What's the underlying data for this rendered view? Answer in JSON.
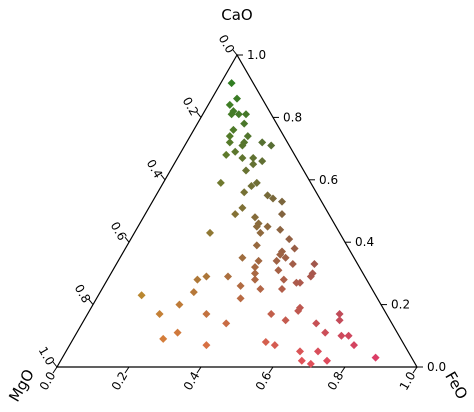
{
  "chart_data": {
    "type": "scatter",
    "subtype": "ternary",
    "axes": {
      "top": {
        "label": "CaO",
        "ticks": [
          1.0,
          0.8,
          0.6,
          0.4,
          0.2,
          0.0
        ],
        "tick_labels": [
          "1.0",
          "0.8",
          "0.6",
          "0.4",
          "0.2",
          "0.0"
        ]
      },
      "left": {
        "label": "MgO",
        "ticks": [
          0.0,
          0.2,
          0.4,
          0.6,
          0.8,
          1.0
        ],
        "tick_labels": [
          "0.0",
          "0.2",
          "0.4",
          "0.6",
          "0.8",
          "1.0"
        ]
      },
      "right": {
        "label": "FeO",
        "ticks": [
          0.0,
          0.2,
          0.4,
          0.6,
          0.8,
          1.0
        ],
        "tick_labels": [
          "0.0",
          "0.2",
          "0.4",
          "0.6",
          "0.8",
          "1.0"
        ]
      }
    },
    "marker": "diamond",
    "color_mapping": {
      "CaO": "#1f7f1f",
      "MgO": "#e89a2a",
      "FeO": "#e0306f"
    },
    "points": [
      {
        "CaO": 0.91,
        "MgO": 0.06,
        "FeO": 0.03
      },
      {
        "CaO": 0.86,
        "MgO": 0.07,
        "FeO": 0.07
      },
      {
        "CaO": 0.84,
        "MgO": 0.1,
        "FeO": 0.06
      },
      {
        "CaO": 0.82,
        "MgO": 0.1,
        "FeO": 0.08
      },
      {
        "CaO": 0.81,
        "MgO": 0.07,
        "FeO": 0.12
      },
      {
        "CaO": 0.81,
        "MgO": 0.11,
        "FeO": 0.08
      },
      {
        "CaO": 0.81,
        "MgO": 0.09,
        "FeO": 0.1
      },
      {
        "CaO": 0.78,
        "MgO": 0.09,
        "FeO": 0.13
      },
      {
        "CaO": 0.76,
        "MgO": 0.13,
        "FeO": 0.11
      },
      {
        "CaO": 0.74,
        "MgO": 0.15,
        "FeO": 0.11
      },
      {
        "CaO": 0.74,
        "MgO": 0.1,
        "FeO": 0.16
      },
      {
        "CaO": 0.72,
        "MgO": 0.12,
        "FeO": 0.16
      },
      {
        "CaO": 0.72,
        "MgO": 0.16,
        "FeO": 0.12
      },
      {
        "CaO": 0.71,
        "MgO": 0.13,
        "FeO": 0.16
      },
      {
        "CaO": 0.69,
        "MgO": 0.16,
        "FeO": 0.15
      },
      {
        "CaO": 0.72,
        "MgO": 0.07,
        "FeO": 0.21
      },
      {
        "CaO": 0.71,
        "MgO": 0.05,
        "FeO": 0.24
      },
      {
        "CaO": 0.68,
        "MgO": 0.19,
        "FeO": 0.13
      },
      {
        "CaO": 0.67,
        "MgO": 0.12,
        "FeO": 0.21
      },
      {
        "CaO": 0.67,
        "MgO": 0.15,
        "FeO": 0.18
      },
      {
        "CaO": 0.66,
        "MgO": 0.1,
        "FeO": 0.24
      },
      {
        "CaO": 0.65,
        "MgO": 0.13,
        "FeO": 0.22
      },
      {
        "CaO": 0.63,
        "MgO": 0.16,
        "FeO": 0.21
      },
      {
        "CaO": 0.59,
        "MgO": 0.25,
        "FeO": 0.16
      },
      {
        "CaO": 0.59,
        "MgO": 0.15,
        "FeO": 0.26
      },
      {
        "CaO": 0.58,
        "MgO": 0.17,
        "FeO": 0.25
      },
      {
        "CaO": 0.56,
        "MgO": 0.2,
        "FeO": 0.24
      },
      {
        "CaO": 0.55,
        "MgO": 0.14,
        "FeO": 0.31
      },
      {
        "CaO": 0.54,
        "MgO": 0.13,
        "FeO": 0.33
      },
      {
        "CaO": 0.53,
        "MgO": 0.11,
        "FeO": 0.36
      },
      {
        "CaO": 0.51,
        "MgO": 0.23,
        "FeO": 0.26
      },
      {
        "CaO": 0.49,
        "MgO": 0.26,
        "FeO": 0.25
      },
      {
        "CaO": 0.49,
        "MgO": 0.13,
        "FeO": 0.38
      },
      {
        "CaO": 0.48,
        "MgO": 0.21,
        "FeO": 0.31
      },
      {
        "CaO": 0.46,
        "MgO": 0.21,
        "FeO": 0.33
      },
      {
        "CaO": 0.45,
        "MgO": 0.22,
        "FeO": 0.33
      },
      {
        "CaO": 0.45,
        "MgO": 0.19,
        "FeO": 0.36
      },
      {
        "CaO": 0.44,
        "MgO": 0.16,
        "FeO": 0.4
      },
      {
        "CaO": 0.43,
        "MgO": 0.36,
        "FeO": 0.21
      },
      {
        "CaO": 0.43,
        "MgO": 0.22,
        "FeO": 0.35
      },
      {
        "CaO": 0.41,
        "MgO": 0.15,
        "FeO": 0.44
      },
      {
        "CaO": 0.39,
        "MgO": 0.25,
        "FeO": 0.36
      },
      {
        "CaO": 0.38,
        "MgO": 0.15,
        "FeO": 0.47
      },
      {
        "CaO": 0.37,
        "MgO": 0.19,
        "FeO": 0.44
      },
      {
        "CaO": 0.36,
        "MgO": 0.2,
        "FeO": 0.44
      },
      {
        "CaO": 0.35,
        "MgO": 0.31,
        "FeO": 0.34
      },
      {
        "CaO": 0.35,
        "MgO": 0.19,
        "FeO": 0.46
      },
      {
        "CaO": 0.34,
        "MgO": 0.22,
        "FeO": 0.44
      },
      {
        "CaO": 0.34,
        "MgO": 0.27,
        "FeO": 0.39
      },
      {
        "CaO": 0.33,
        "MgO": 0.12,
        "FeO": 0.55
      },
      {
        "CaO": 0.33,
        "MgO": 0.18,
        "FeO": 0.49
      },
      {
        "CaO": 0.32,
        "MgO": 0.29,
        "FeO": 0.39
      },
      {
        "CaO": 0.31,
        "MgO": 0.23,
        "FeO": 0.46
      },
      {
        "CaO": 0.3,
        "MgO": 0.3,
        "FeO": 0.4
      },
      {
        "CaO": 0.3,
        "MgO": 0.14,
        "FeO": 0.56
      },
      {
        "CaO": 0.29,
        "MgO": 0.44,
        "FeO": 0.27
      },
      {
        "CaO": 0.29,
        "MgO": 0.38,
        "FeO": 0.33
      },
      {
        "CaO": 0.29,
        "MgO": 0.15,
        "FeO": 0.56
      },
      {
        "CaO": 0.28,
        "MgO": 0.47,
        "FeO": 0.25
      },
      {
        "CaO": 0.28,
        "MgO": 0.31,
        "FeO": 0.41
      },
      {
        "CaO": 0.28,
        "MgO": 0.23,
        "FeO": 0.49
      },
      {
        "CaO": 0.27,
        "MgO": 0.2,
        "FeO": 0.53
      },
      {
        "CaO": 0.27,
        "MgO": 0.19,
        "FeO": 0.54
      },
      {
        "CaO": 0.26,
        "MgO": 0.36,
        "FeO": 0.38
      },
      {
        "CaO": 0.25,
        "MgO": 0.31,
        "FeO": 0.44
      },
      {
        "CaO": 0.25,
        "MgO": 0.25,
        "FeO": 0.5
      },
      {
        "CaO": 0.24,
        "MgO": 0.5,
        "FeO": 0.26
      },
      {
        "CaO": 0.23,
        "MgO": 0.65,
        "FeO": 0.12
      },
      {
        "CaO": 0.22,
        "MgO": 0.38,
        "FeO": 0.4
      },
      {
        "CaO": 0.2,
        "MgO": 0.56,
        "FeO": 0.24
      },
      {
        "CaO": 0.19,
        "MgO": 0.23,
        "FeO": 0.58
      },
      {
        "CaO": 0.18,
        "MgO": 0.24,
        "FeO": 0.58
      },
      {
        "CaO": 0.17,
        "MgO": 0.5,
        "FeO": 0.33
      },
      {
        "CaO": 0.17,
        "MgO": 0.32,
        "FeO": 0.51
      },
      {
        "CaO": 0.17,
        "MgO": 0.63,
        "FeO": 0.2
      },
      {
        "CaO": 0.17,
        "MgO": 0.13,
        "FeO": 0.7
      },
      {
        "CaO": 0.15,
        "MgO": 0.14,
        "FeO": 0.71
      },
      {
        "CaO": 0.15,
        "MgO": 0.29,
        "FeO": 0.56
      },
      {
        "CaO": 0.14,
        "MgO": 0.21,
        "FeO": 0.65
      },
      {
        "CaO": 0.14,
        "MgO": 0.46,
        "FeO": 0.4
      },
      {
        "CaO": 0.11,
        "MgO": 0.61,
        "FeO": 0.28
      },
      {
        "CaO": 0.11,
        "MgO": 0.2,
        "FeO": 0.69
      },
      {
        "CaO": 0.1,
        "MgO": 0.14,
        "FeO": 0.76
      },
      {
        "CaO": 0.1,
        "MgO": 0.16,
        "FeO": 0.74
      },
      {
        "CaO": 0.09,
        "MgO": 0.66,
        "FeO": 0.25
      },
      {
        "CaO": 0.08,
        "MgO": 0.38,
        "FeO": 0.54
      },
      {
        "CaO": 0.07,
        "MgO": 0.36,
        "FeO": 0.57
      },
      {
        "CaO": 0.07,
        "MgO": 0.55,
        "FeO": 0.38
      },
      {
        "CaO": 0.07,
        "MgO": 0.14,
        "FeO": 0.79
      },
      {
        "CaO": 0.05,
        "MgO": 0.25,
        "FeO": 0.7
      },
      {
        "CaO": 0.05,
        "MgO": 0.3,
        "FeO": 0.65
      },
      {
        "CaO": 0.03,
        "MgO": 0.1,
        "FeO": 0.87
      },
      {
        "CaO": 0.02,
        "MgO": 0.31,
        "FeO": 0.67
      },
      {
        "CaO": 0.02,
        "MgO": 0.24,
        "FeO": 0.74
      },
      {
        "CaO": 0.01,
        "MgO": 0.29,
        "FeO": 0.7
      }
    ]
  }
}
